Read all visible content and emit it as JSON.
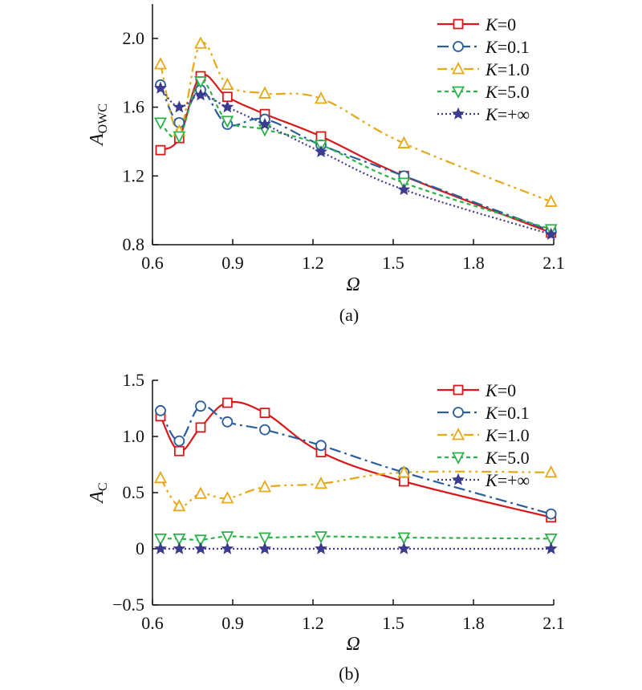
{
  "colors": {
    "K0": "#d7191c",
    "K01": "#2c5d9b",
    "K1": "#e6a817",
    "K5": "#2db24a",
    "Kinf": "#3b3b8f",
    "axis": "#111111"
  },
  "legend": [
    {
      "k": "K",
      "v": "=0"
    },
    {
      "k": "K",
      "v": "=0.1"
    },
    {
      "k": "K",
      "v": "=1.0"
    },
    {
      "k": "K",
      "v": "=5.0"
    },
    {
      "k": "K",
      "v": "=+∞"
    }
  ],
  "chart_data": [
    {
      "type": "line",
      "panel": "a",
      "caption": "(a)",
      "xlabel": "Ω",
      "ylabel_main": "A",
      "ylabel_sub": "OWC",
      "xlim": [
        0.6,
        2.1
      ],
      "ylim": [
        0.8,
        2.2
      ],
      "xticks": [
        0.6,
        0.9,
        1.2,
        1.5,
        1.8,
        2.1
      ],
      "xtick_labels": [
        "0.6",
        "0.9",
        "1.2",
        "1.5",
        "1.8",
        "2.1"
      ],
      "yticks": [
        0.8,
        1.2,
        1.6,
        2.0
      ],
      "ytick_labels": [
        "0.8",
        "1.2",
        "1.6",
        "2.0"
      ],
      "x": [
        0.63,
        0.7,
        0.78,
        0.88,
        1.02,
        1.23,
        1.54,
        2.09
      ],
      "series": [
        {
          "name": "K=0",
          "marker": "square",
          "dash": "",
          "values": [
            1.35,
            1.42,
            1.78,
            1.66,
            1.56,
            1.43,
            1.2,
            0.87
          ]
        },
        {
          "name": "K=0.1",
          "marker": "circle",
          "dash": "14 5 3 5",
          "values": [
            1.73,
            1.51,
            1.7,
            1.5,
            1.53,
            1.38,
            1.2,
            0.88
          ]
        },
        {
          "name": "K=1.0",
          "marker": "triangle-up",
          "dash": "12 5 3 5 3 5",
          "values": [
            1.85,
            1.46,
            1.97,
            1.73,
            1.68,
            1.65,
            1.39,
            1.05
          ]
        },
        {
          "name": "K=5.0",
          "marker": "triangle-down",
          "dash": "5 4",
          "values": [
            1.51,
            1.43,
            1.75,
            1.52,
            1.47,
            1.38,
            1.16,
            0.89
          ]
        },
        {
          "name": "K=+∞",
          "marker": "star",
          "dash": "2 3",
          "values": [
            1.71,
            1.6,
            1.67,
            1.6,
            1.5,
            1.34,
            1.12,
            0.86
          ]
        }
      ]
    },
    {
      "type": "line",
      "panel": "b",
      "caption": "(b)",
      "xlabel": "Ω",
      "ylabel_main": "A",
      "ylabel_sub": "C",
      "xlim": [
        0.6,
        2.1
      ],
      "ylim": [
        -0.5,
        1.5
      ],
      "xticks": [
        0.6,
        0.9,
        1.2,
        1.5,
        1.8,
        2.1
      ],
      "xtick_labels": [
        "0.6",
        "0.9",
        "1.2",
        "1.5",
        "1.8",
        "2.1"
      ],
      "yticks": [
        -0.5,
        0,
        0.5,
        1.0,
        1.5
      ],
      "ytick_labels": [
        "−0.5",
        "0",
        "0.5",
        "1.0",
        "1.5"
      ],
      "x": [
        0.63,
        0.7,
        0.78,
        0.88,
        1.02,
        1.23,
        1.54,
        2.09
      ],
      "series": [
        {
          "name": "K=0",
          "marker": "square",
          "dash": "",
          "values": [
            1.18,
            0.87,
            1.08,
            1.3,
            1.21,
            0.86,
            0.6,
            0.28
          ]
        },
        {
          "name": "K=0.1",
          "marker": "circle",
          "dash": "14 5 3 5",
          "values": [
            1.23,
            0.96,
            1.27,
            1.13,
            1.06,
            0.92,
            0.68,
            0.31
          ]
        },
        {
          "name": "K=1.0",
          "marker": "triangle-up",
          "dash": "12 5 3 5 3 5",
          "values": [
            0.63,
            0.38,
            0.49,
            0.45,
            0.55,
            0.58,
            0.68,
            0.68
          ]
        },
        {
          "name": "K=5.0",
          "marker": "triangle-down",
          "dash": "5 4",
          "values": [
            0.09,
            0.09,
            0.08,
            0.11,
            0.1,
            0.11,
            0.1,
            0.09
          ]
        },
        {
          "name": "K=+∞",
          "marker": "star",
          "dash": "2 3",
          "values": [
            0.0,
            0.0,
            0.0,
            0.0,
            0.0,
            0.0,
            0.0,
            0.0
          ]
        }
      ]
    }
  ]
}
